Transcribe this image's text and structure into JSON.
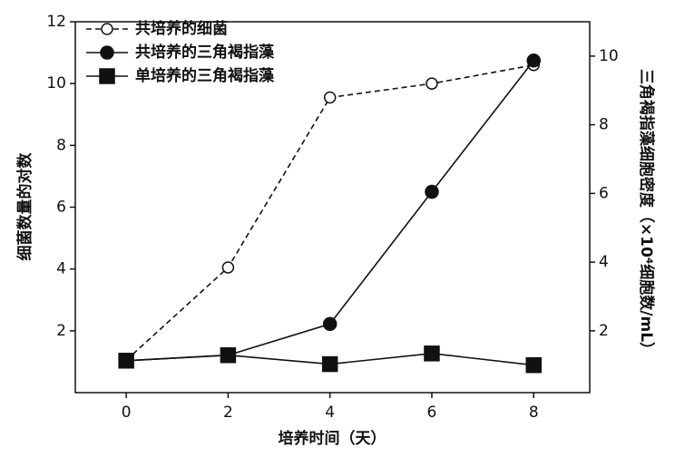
{
  "chart_data": {
    "type": "line",
    "x_label": "培养时间（天）",
    "y_label": "细菌数量的对数",
    "y2_label": "三角褐指藻细胞密度（×10⁴细胞数/mL）",
    "x": [
      0,
      2,
      4,
      6,
      8
    ],
    "xlim": [
      -1,
      9.1
    ],
    "xticks": [
      0,
      2,
      4,
      6,
      8
    ],
    "ylim": [
      0,
      12
    ],
    "yticks": [
      2,
      4,
      6,
      8,
      10,
      12
    ],
    "y2lim": [
      0.2,
      11
    ],
    "y2ticks": [
      2,
      4,
      6,
      8,
      10
    ],
    "legend": "top-left",
    "series": [
      {
        "name": "共培养的细菌",
        "color": "#111111",
        "marker": "open-circle",
        "dashed": true,
        "axis": "y",
        "values": [
          1.05,
          4.05,
          9.55,
          10.0,
          10.6
        ]
      },
      {
        "name": "共培养的三角褐指藻",
        "color": "#111111",
        "marker": "circle",
        "dashed": false,
        "axis": "y2",
        "values": [
          1.13,
          1.29,
          2.2,
          6.05,
          9.87
        ]
      },
      {
        "name": "单培养的三角褐指藻",
        "color": "#111111",
        "marker": "square",
        "dashed": false,
        "axis": "y2",
        "values": [
          1.13,
          1.29,
          1.03,
          1.34,
          1.0
        ]
      }
    ]
  }
}
